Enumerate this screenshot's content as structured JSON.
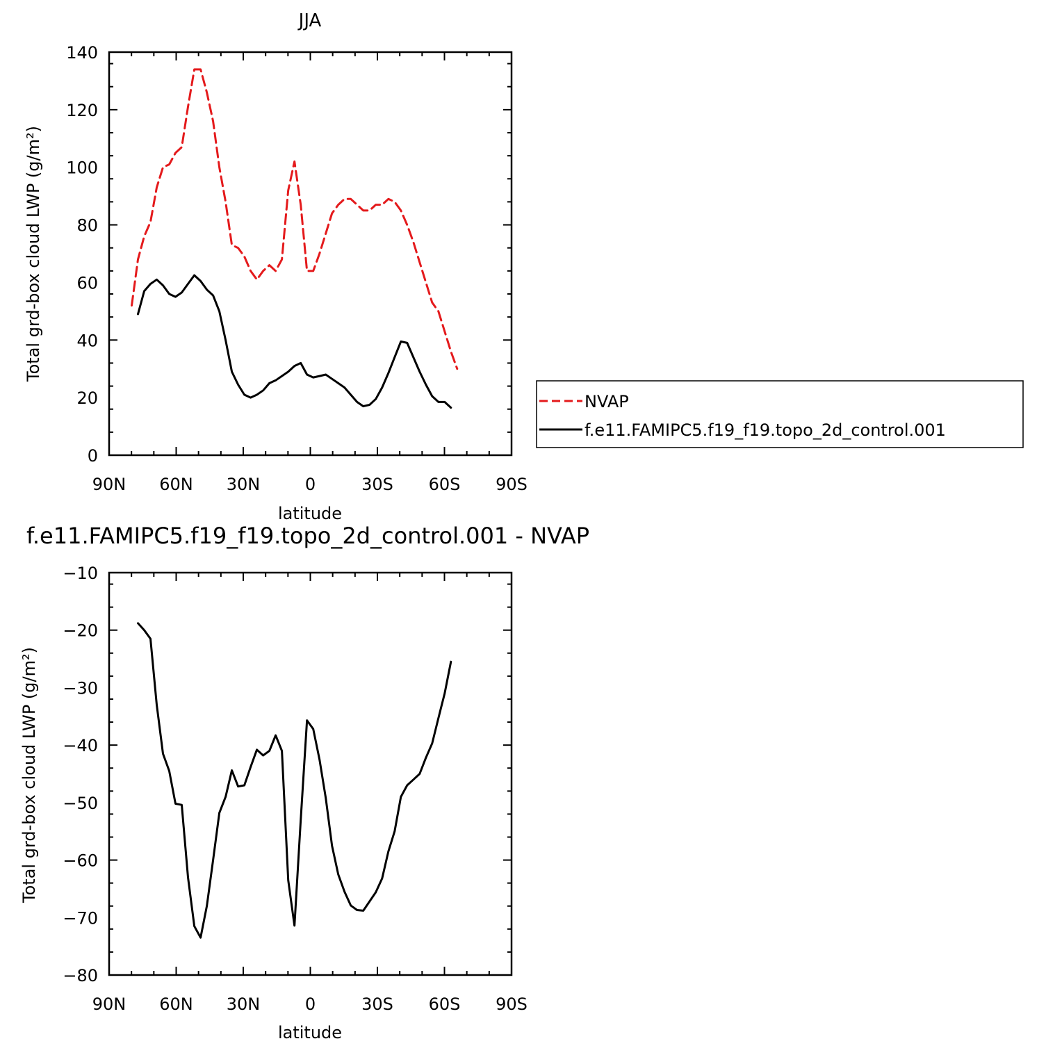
{
  "chart_data": [
    {
      "type": "line",
      "title": "JJA",
      "xlabel": "latitude",
      "ylabel": "Total grd-box cloud LWP (g/m²)",
      "xlim": [
        90,
        -90
      ],
      "ylim": [
        0,
        140
      ],
      "x_ticks": [
        {
          "value": 90,
          "label": "90N"
        },
        {
          "value": 60,
          "label": "60N"
        },
        {
          "value": 30,
          "label": "30N"
        },
        {
          "value": 0,
          "label": "0"
        },
        {
          "value": -30,
          "label": "30S"
        },
        {
          "value": -60,
          "label": "60S"
        },
        {
          "value": -90,
          "label": "90S"
        }
      ],
      "y_ticks": [
        0,
        20,
        40,
        60,
        80,
        100,
        120,
        140
      ],
      "legend_position": "right",
      "series": [
        {
          "name": "NVAP",
          "color": "#e41a1c",
          "style": "dashed",
          "x": [
            79.9,
            77.1,
            74.3,
            71.5,
            68.7,
            65.9,
            63.1,
            60.3,
            57.5,
            54.7,
            51.9,
            49.1,
            46.3,
            43.5,
            40.7,
            37.9,
            35.1,
            32.3,
            29.5,
            26.7,
            23.9,
            21.1,
            18.3,
            15.5,
            12.7,
            9.9,
            7.1,
            4.3,
            1.5,
            -1.3,
            -4.1,
            -6.9,
            -9.7,
            -12.5,
            -15.3,
            -18.1,
            -20.9,
            -23.7,
            -26.5,
            -29.3,
            -32.1,
            -34.9,
            -37.7,
            -40.5,
            -43.3,
            -46.1,
            -48.9,
            -51.7,
            -54.5,
            -57.3,
            -60.1,
            -62.9,
            -65.7
          ],
          "y": [
            52,
            68,
            76,
            81,
            93,
            100,
            101,
            105,
            107,
            121,
            134,
            134,
            126,
            116,
            100,
            88,
            73,
            72,
            69,
            64,
            61,
            64,
            66,
            64,
            68,
            92,
            102,
            87,
            64,
            64,
            70,
            77,
            84,
            87,
            89,
            89,
            87,
            85,
            85,
            87,
            87,
            89,
            88,
            85,
            80,
            74,
            67,
            60,
            53,
            50,
            43,
            36,
            30
          ]
        },
        {
          "name": "f.e11.FAMIPC5.f19_f19.topo_2d_control.001",
          "color": "#000000",
          "style": "solid",
          "x": [
            77.1,
            74.3,
            71.5,
            68.7,
            65.9,
            63.1,
            60.3,
            57.5,
            54.7,
            51.9,
            49.1,
            46.3,
            43.5,
            40.7,
            37.9,
            35.1,
            32.3,
            29.5,
            26.7,
            23.9,
            21.1,
            18.3,
            15.5,
            12.7,
            9.9,
            7.1,
            4.3,
            1.5,
            -1.3,
            -4.1,
            -6.9,
            -9.7,
            -12.5,
            -15.3,
            -18.1,
            -20.9,
            -23.7,
            -26.5,
            -29.3,
            -32.1,
            -34.9,
            -37.7,
            -40.5,
            -43.3,
            -46.1,
            -48.9,
            -51.7,
            -54.5,
            -57.3,
            -60.1,
            -62.9
          ],
          "y": [
            49,
            57,
            59.5,
            61,
            59,
            56,
            55,
            56.5,
            59.5,
            62.5,
            60.5,
            57.5,
            55.5,
            50,
            40,
            29,
            24.5,
            21,
            20,
            21,
            22.5,
            25,
            26,
            27.5,
            29,
            31,
            32,
            28,
            27,
            27.5,
            28,
            26.5,
            25,
            23.5,
            21,
            18.5,
            17,
            17.5,
            19.5,
            23.5,
            28.5,
            34,
            39.5,
            39,
            34,
            29,
            24.5,
            20.5,
            18.5,
            18.5,
            16.5
          ]
        }
      ]
    },
    {
      "type": "line",
      "title": "f.e11.FAMIPC5.f19_f19.topo_2d_control.001  -  NVAP",
      "xlabel": "latitude",
      "ylabel": "Total grd-box cloud LWP (g/m²)",
      "xlim": [
        90,
        -90
      ],
      "ylim": [
        -80,
        -10
      ],
      "x_ticks": [
        {
          "value": 90,
          "label": "90N"
        },
        {
          "value": 60,
          "label": "60N"
        },
        {
          "value": 30,
          "label": "30N"
        },
        {
          "value": 0,
          "label": "0"
        },
        {
          "value": -30,
          "label": "30S"
        },
        {
          "value": -60,
          "label": "60S"
        },
        {
          "value": -90,
          "label": "90S"
        }
      ],
      "y_ticks": [
        -80,
        -70,
        -60,
        -50,
        -40,
        -30,
        -20,
        -10
      ],
      "series": [
        {
          "color": "#000000",
          "style": "solid",
          "x": [
            77.1,
            74.3,
            71.5,
            68.7,
            65.9,
            63.1,
            60.3,
            57.5,
            54.7,
            51.9,
            49.1,
            46.3,
            43.5,
            40.7,
            37.9,
            35.1,
            32.3,
            29.5,
            26.7,
            23.9,
            21.1,
            18.3,
            15.5,
            12.7,
            9.9,
            7.1,
            4.3,
            1.5,
            -1.3,
            -4.1,
            -6.9,
            -9.7,
            -12.5,
            -15.3,
            -18.1,
            -20.9,
            -23.7,
            -26.5,
            -29.3,
            -32.1,
            -34.9,
            -37.7,
            -40.5,
            -43.3,
            -46.1,
            -48.9,
            -51.7,
            -54.5,
            -57.3,
            -60.1,
            -62.9
          ],
          "y": [
            -18.8,
            -20,
            -21.5,
            -33,
            -41.5,
            -44.5,
            -50.2,
            -50.4,
            -63,
            -71.5,
            -73.5,
            -68,
            -60,
            -51.8,
            -49,
            -44.4,
            -47.2,
            -47,
            -43.8,
            -40.8,
            -41.8,
            -41,
            -38.3,
            -41,
            -63.5,
            -71.4,
            -53,
            -35.7,
            -37.2,
            -42.5,
            -49.2,
            -57.5,
            -62.5,
            -65.5,
            -67.9,
            -68.7,
            -68.8,
            -67.2,
            -65.6,
            -63.2,
            -58.5,
            -55,
            -49,
            -47,
            -46,
            -45,
            -42.2,
            -39.7,
            -35.3,
            -31,
            -25.5
          ]
        }
      ]
    }
  ]
}
